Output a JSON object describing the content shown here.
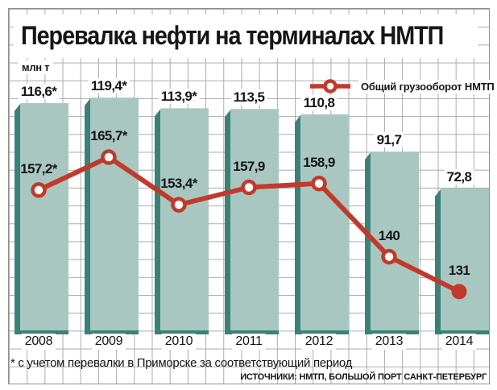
{
  "title": "Перевалка нефти на терминалах НМТП",
  "units_label": "млн т",
  "legend": {
    "label": "Общий грузооборот НМТП"
  },
  "footnote": "* с учетом перевалки в Приморске за соответствующий период",
  "source": "ИСТОЧНИКИ: НМТП, БОЛЬШОЙ ПОРТ САНКТ-ПЕТЕРБУРГ",
  "colors": {
    "bar": "#a9c7c1",
    "bar_edge": "#3a8278",
    "line": "#c03a2c",
    "grid": "#ababab"
  },
  "chart_data": {
    "type": "bar",
    "title": "Перевалка нефти на терминалах НМТП",
    "ylabel": "млн т",
    "legend_position": "top-right",
    "grid": true,
    "categories": [
      "2008",
      "2009",
      "2010",
      "2011",
      "2012",
      "2013",
      "2014"
    ],
    "series": [
      {
        "name": "Перевалка нефти на терминалах НМТП",
        "type": "bar",
        "values": [
          116.6,
          119.4,
          113.9,
          113.5,
          110.8,
          91.7,
          72.8
        ],
        "labels": [
          "116,6*",
          "119,4*",
          "113,9*",
          "113,5",
          "110,8",
          "91,7",
          "72,8"
        ]
      },
      {
        "name": "Общий грузооборот НМТП",
        "type": "line",
        "values": [
          157.2,
          165.7,
          153.4,
          157.9,
          158.9,
          140,
          131
        ],
        "labels": [
          "157,2*",
          "165,7*",
          "153,4*",
          "157,9",
          "158,9",
          "140",
          "131"
        ]
      }
    ]
  }
}
